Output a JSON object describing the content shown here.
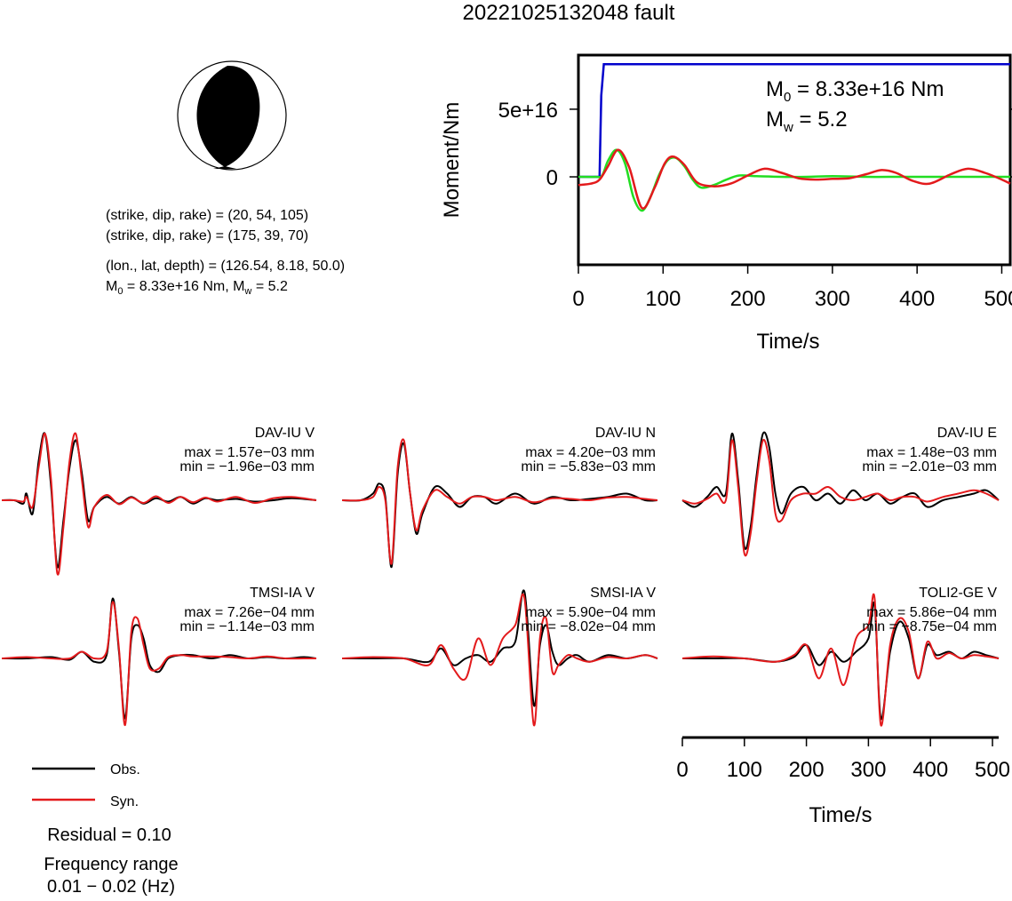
{
  "title": "20221025132048 fault",
  "mechanism": {
    "strike_dip_rake_1": "(strike, dip, rake) = (20, 54, 105)",
    "strike_dip_rake_2": "(strike, dip, rake) = (175, 39, 70)",
    "location": "(lon., lat, depth) = (126.54, 8.18, 50.0)",
    "magnitude_M0": "8.33e+16 Nm",
    "magnitude_Mw": "5.2"
  },
  "moment_annot": {
    "m0_value": "8.33e+16 Nm",
    "mw_value": "5.2"
  },
  "legend": {
    "obs": "Obs.",
    "syn": "Syn."
  },
  "residual": "Residual = 0.10",
  "frequency": {
    "line1": "Frequency range",
    "line2": "0.01 − 0.02 (Hz)"
  },
  "colors": {
    "obs": "#000000",
    "syn": "#e31a1c",
    "moment": "#0000cc",
    "stf": "#22dd22",
    "mtrace": "#e31a1c"
  },
  "chart_data": [
    {
      "type": "line",
      "ylabel": "Moment/Nm",
      "xlabel": "Time/s",
      "xlim": [
        0,
        510
      ],
      "ylim": [
        -6.5e+16,
        9e+16
      ],
      "xticks": [
        0,
        100,
        200,
        300,
        400,
        500
      ],
      "yticks": [
        {
          "value": 0,
          "label": "0"
        },
        {
          "value": 5e+16,
          "label": "5e+16"
        }
      ],
      "series": [
        {
          "color": "blue",
          "x": [
            0,
            25,
            27,
            30,
            510
          ],
          "y": [
            0,
            0,
            6e+16,
            8.33e+16,
            8.33e+16
          ]
        },
        {
          "color": "green",
          "x": [
            0,
            20,
            28,
            35,
            45,
            55,
            65,
            75,
            85,
            95,
            105,
            115,
            125,
            135,
            145,
            160,
            175,
            190,
            210,
            240,
            270,
            300,
            340,
            380,
            420,
            460,
            510
          ],
          "y": [
            0,
            0,
            1000000000000000.0,
            1.2e+16,
            2e+16,
            1e+16,
            -1.5e+16,
            -2.5e+16,
            -1.5e+16,
            1000000000000000.0,
            1.2e+16,
            1.4e+16,
            8000000000000000.0,
            -2000000000000000.0,
            -8000000000000000.0,
            -6000000000000000.0,
            -2000000000000000.0,
            1000000000000000.0,
            500000000000000.0,
            0,
            0,
            500000000000000.0,
            0,
            0,
            0,
            0,
            0
          ]
        },
        {
          "color": "red",
          "x": [
            0,
            15,
            25,
            35,
            47,
            60,
            75,
            90,
            102,
            112,
            125,
            140,
            160,
            180,
            200,
            220,
            240,
            260,
            280,
            300,
            320,
            340,
            358,
            375,
            395,
            415,
            440,
            460,
            480,
            500,
            510
          ],
          "y": [
            -6000000000000000.0,
            -5000000000000000.0,
            -2000000000000000.0,
            8000000000000000.0,
            2e+16,
            7000000000000000.0,
            -2.3e+16,
            -8000000000000000.0,
            1e+16,
            1.5e+16,
            9000000000000000.0,
            -4000000000000000.0,
            -7000000000000000.0,
            -5000000000000000.0,
            1000000000000000.0,
            6000000000000000.0,
            3000000000000000.0,
            -1000000000000000.0,
            -2000000000000000.0,
            -1500000000000000.0,
            -1000000000000000.0,
            2000000000000000.0,
            5000000000000000.0,
            3000000000000000.0,
            -3000000000000000.0,
            -5000000000000000.0,
            2000000000000000.0,
            6000000000000000.0,
            3000000000000000.0,
            -2000000000000000.0,
            -5000000000000000.0
          ]
        }
      ]
    },
    {
      "type": "line",
      "xlabel": "Time/s",
      "xlim": [
        0,
        510
      ],
      "xticks": [
        0,
        100,
        200,
        300,
        400,
        500
      ],
      "stations": [
        {
          "name": "DAV-IU V",
          "max": "max = 1.57e−03 mm",
          "min": "min = −1.96e−03 mm",
          "x": [
            0,
            20,
            35,
            40,
            50,
            60,
            70,
            80,
            90,
            100,
            110,
            120,
            130,
            140,
            150,
            170,
            190,
            210,
            230,
            250,
            270,
            290,
            310,
            330,
            350,
            380,
            410,
            440,
            470,
            510
          ],
          "obs": [
            0,
            0,
            -0.05,
            0.1,
            -0.2,
            0.6,
            1.0,
            0.2,
            -1.0,
            -0.3,
            0.5,
            0.9,
            0.4,
            -0.3,
            -0.1,
            0.05,
            -0.05,
            0.05,
            -0.05,
            0.03,
            -0.02,
            0.05,
            -0.05,
            0.03,
            0,
            0.02,
            -0.02,
            0,
            0.03,
            0
          ],
          "syn": [
            0,
            0,
            -0.02,
            0.05,
            -0.1,
            0.5,
            1.0,
            0.3,
            -1.1,
            -0.4,
            0.6,
            1.0,
            0.3,
            -0.4,
            -0.1,
            0.08,
            -0.06,
            0.04,
            -0.04,
            0.06,
            -0.04,
            0.05,
            -0.03,
            0.04,
            -0.02,
            0.05,
            -0.04,
            0.03,
            0.05,
            0
          ]
        },
        {
          "name": "DAV-IU N",
          "max": "max = 4.20e−03 mm",
          "min": "min = −5.83e−03 mm",
          "x": [
            0,
            30,
            50,
            60,
            70,
            80,
            90,
            100,
            110,
            120,
            130,
            150,
            170,
            190,
            210,
            230,
            250,
            280,
            310,
            340,
            370,
            400,
            430,
            460,
            490,
            510
          ],
          "obs": [
            0,
            0,
            0.1,
            0.25,
            0.05,
            -1.0,
            0.4,
            0.85,
            0.1,
            -0.5,
            -0.2,
            0.2,
            0.1,
            -0.1,
            0.05,
            0.05,
            -0.05,
            0.1,
            -0.05,
            0.05,
            0,
            0.02,
            0.05,
            0.1,
            0,
            0
          ],
          "syn": [
            0,
            0,
            0.05,
            0.2,
            0.0,
            -0.95,
            0.5,
            0.9,
            0.1,
            -0.45,
            -0.15,
            0.15,
            0.05,
            -0.05,
            0.05,
            0.05,
            0,
            0.05,
            -0.03,
            0.03,
            0.02,
            0.0,
            0.04,
            0.05,
            0.02,
            0
          ]
        },
        {
          "name": "DAV-IU E",
          "max": "max = 1.48e−03 mm",
          "min": "min = −2.01e−03 mm",
          "x": [
            0,
            20,
            40,
            55,
            70,
            80,
            90,
            100,
            110,
            120,
            130,
            140,
            150,
            160,
            175,
            195,
            215,
            235,
            255,
            275,
            295,
            315,
            335,
            355,
            375,
            395,
            420,
            445,
            470,
            490,
            510
          ],
          "obs": [
            0,
            -0.1,
            0.05,
            0.2,
            0.1,
            1.0,
            0.3,
            -0.7,
            -0.4,
            0.4,
            1.0,
            0.8,
            0.1,
            -0.2,
            0.1,
            0.2,
            0.0,
            0.1,
            -0.05,
            0.15,
            0.0,
            0.1,
            -0.05,
            0.05,
            0.1,
            -0.1,
            0.0,
            0.05,
            0.1,
            0.15,
            0
          ],
          "syn": [
            0,
            -0.05,
            0.02,
            0.1,
            0.0,
            0.9,
            0.2,
            -0.8,
            -0.5,
            0.3,
            0.9,
            0.6,
            -0.2,
            -0.3,
            0.0,
            0.1,
            0.1,
            0.2,
            0.05,
            0.0,
            0.05,
            0.1,
            0.0,
            0.05,
            0.05,
            -0.02,
            0.05,
            0.1,
            0.15,
            0.1,
            0
          ]
        },
        {
          "name": "TMSI-IA V",
          "max": "max = 7.26e−04 mm",
          "min": "min = −1.14e−03 mm",
          "x": [
            0,
            40,
            80,
            110,
            130,
            150,
            170,
            180,
            190,
            200,
            210,
            220,
            230,
            240,
            255,
            270,
            290,
            310,
            340,
            370,
            400,
            430,
            460,
            490,
            510
          ],
          "obs": [
            0,
            0,
            0.02,
            -0.02,
            0.1,
            -0.05,
            0.05,
            0.9,
            0.1,
            -0.9,
            0.3,
            0.5,
            0.3,
            -0.1,
            -0.2,
            0.0,
            0.05,
            0.05,
            0.0,
            0.05,
            0.0,
            0.02,
            0.0,
            0.02,
            0
          ],
          "syn": [
            0,
            0.02,
            0.0,
            0.0,
            0.1,
            0.0,
            0.1,
            0.85,
            0.15,
            -1.0,
            0.4,
            0.6,
            0.2,
            -0.15,
            -0.15,
            0.02,
            0.05,
            0.03,
            0.03,
            0.02,
            0.0,
            0.03,
            0.0,
            0.0,
            0
          ]
        },
        {
          "name": "SMSI-IA V",
          "max": "max = 5.90e−04 mm",
          "min": "min = −8.02e−04 mm",
          "x": [
            0,
            50,
            100,
            140,
            160,
            180,
            200,
            220,
            240,
            260,
            280,
            295,
            310,
            320,
            330,
            340,
            350,
            365,
            380,
            400,
            430,
            460,
            490,
            510
          ],
          "obs": [
            0,
            0,
            0.0,
            -0.05,
            0.15,
            -0.1,
            0.0,
            0.05,
            -0.05,
            0.15,
            0.25,
            1.0,
            -0.7,
            0.2,
            0.5,
            0.1,
            -0.1,
            0.0,
            0.05,
            -0.05,
            0.05,
            0.0,
            0.05,
            0
          ],
          "syn": [
            0,
            0.02,
            0.0,
            -0.1,
            0.2,
            -0.15,
            -0.3,
            0.3,
            -0.1,
            0.3,
            0.5,
            0.9,
            -1.0,
            0.3,
            0.6,
            -0.2,
            -0.1,
            0.05,
            0.0,
            -0.05,
            0.02,
            0.0,
            0.05,
            0
          ]
        },
        {
          "name": "TOLI2-GE V",
          "max": "max = 5.86e−04 mm",
          "min": "min = −8.75e−04 mm",
          "x": [
            0,
            50,
            100,
            150,
            180,
            200,
            220,
            240,
            260,
            280,
            300,
            310,
            320,
            335,
            350,
            365,
            380,
            395,
            410,
            430,
            450,
            470,
            490,
            510
          ],
          "obs": [
            0,
            0,
            0.0,
            -0.05,
            0.02,
            0.2,
            -0.1,
            0.1,
            -0.05,
            0.1,
            0.3,
            0.8,
            -0.9,
            0.1,
            0.55,
            0.3,
            -0.3,
            0.2,
            0.05,
            0.1,
            0.0,
            0.1,
            0.05,
            0
          ],
          "syn": [
            0,
            0.03,
            0.0,
            -0.05,
            0.05,
            0.2,
            -0.3,
            0.15,
            -0.4,
            0.3,
            0.5,
            0.9,
            -1.0,
            0.2,
            0.6,
            0.4,
            -0.3,
            0.25,
            0.0,
            0.08,
            0.0,
            0.05,
            0.03,
            0
          ]
        }
      ]
    }
  ]
}
